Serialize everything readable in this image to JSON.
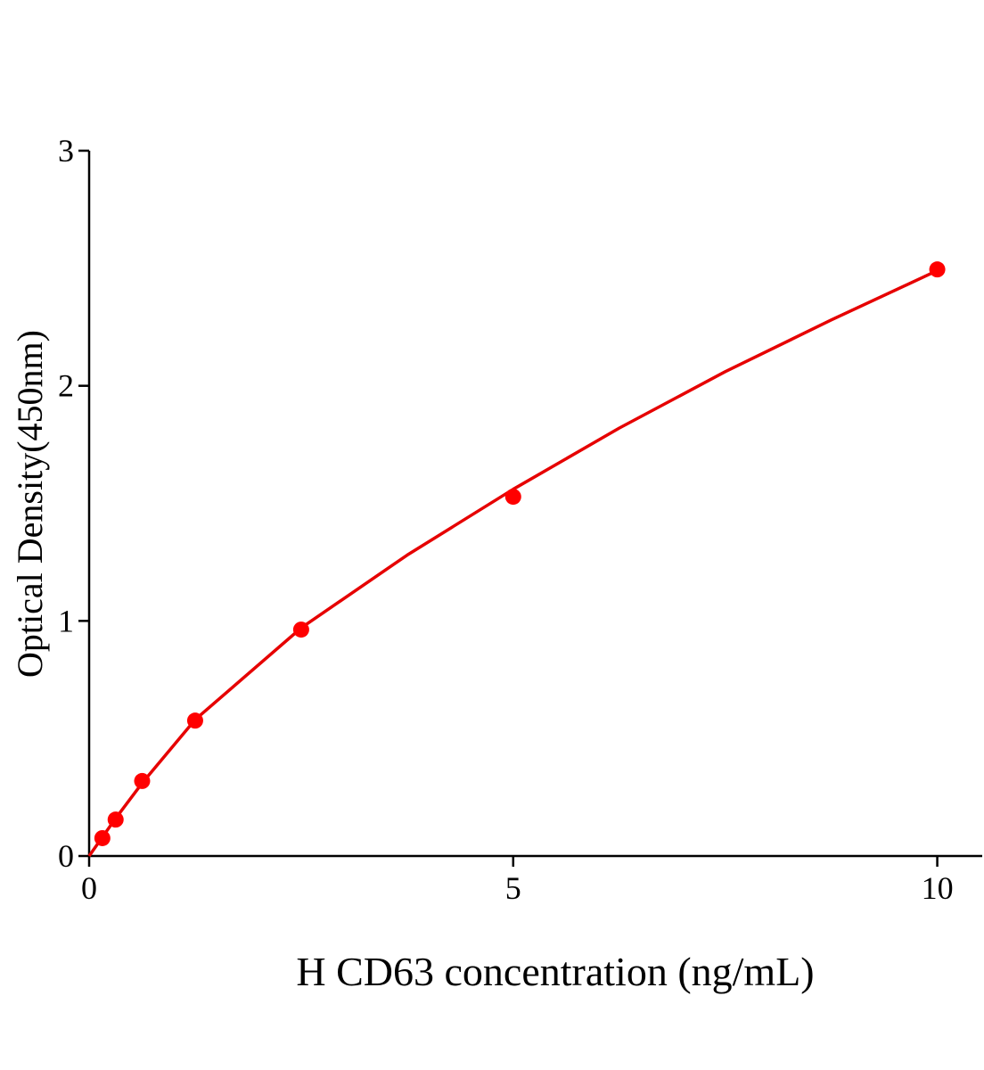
{
  "chart_data": {
    "type": "scatter",
    "x_label": "H CD63 concentration (ng/mL)",
    "y_label": "Optical Density(450nm)",
    "x": [
      0.156,
      0.3125,
      0.625,
      1.25,
      2.5,
      5,
      10
    ],
    "values": [
      0.076,
      0.155,
      0.319,
      0.576,
      0.963,
      1.528,
      2.495
    ],
    "color": "#ff0000",
    "fit": {
      "x": [
        0,
        0.156,
        0.3125,
        0.625,
        1.25,
        2.5,
        3.75,
        5,
        6.25,
        7.5,
        8.75,
        10
      ],
      "values": [
        0,
        0.08,
        0.16,
        0.31,
        0.58,
        0.97,
        1.28,
        1.56,
        1.82,
        2.06,
        2.28,
        2.49
      ],
      "color": "#e60000"
    },
    "xlim": [
      0,
      10.53
    ],
    "xticks": [
      0,
      5,
      10
    ],
    "ylim": [
      0,
      3
    ],
    "yticks": [
      0,
      1,
      2,
      3
    ],
    "grid": false
  }
}
